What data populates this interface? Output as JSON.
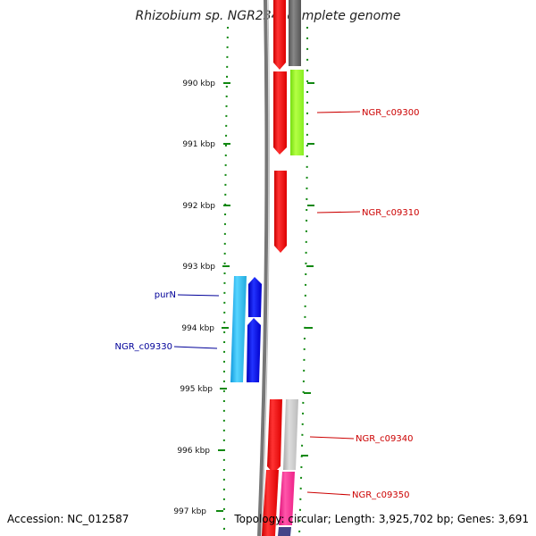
{
  "title": "Rhizobium sp. NGR234, complete genome",
  "footer": {
    "accession": "Accession: NC_012587",
    "stats": "Topology: circular; Length: 3,925,702 bp; Genes: 3,691"
  },
  "ticks": [
    "990 kbp",
    "991 kbp",
    "992 kbp",
    "993 kbp",
    "994 kbp",
    "995 kbp",
    "996 kbp",
    "997 kbp"
  ],
  "gene_labels": [
    {
      "text": "NGR_c09300",
      "color": "#cc0000"
    },
    {
      "text": "NGR_c09310",
      "color": "#cc0000"
    },
    {
      "text": "purN",
      "color": "#000099"
    },
    {
      "text": "NGR_c09330",
      "color": "#000099"
    },
    {
      "text": "NGR_c09340",
      "color": "#cc0000"
    },
    {
      "text": "NGR_c09350",
      "color": "#cc0000"
    }
  ],
  "colors": {
    "forward_cds": "#ff0000",
    "reverse_cds": "#0000ff",
    "reverse_feature": "#33c4ff",
    "green_feature": "#99ff33",
    "pink_feature": "#ff3399",
    "gray_feature": "#666666",
    "light_gray_feature": "#c8c8c8",
    "backbone": "#777777",
    "tick_green": "#118811"
  }
}
